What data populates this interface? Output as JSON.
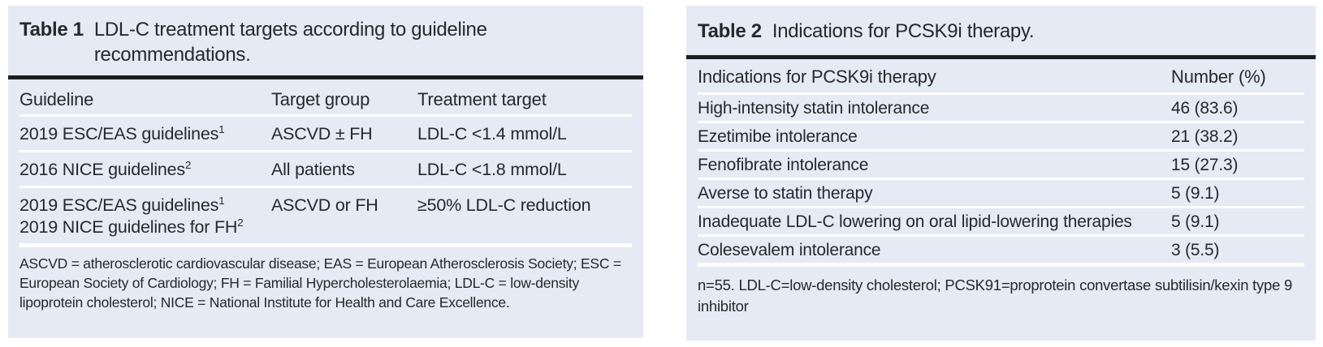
{
  "colors": {
    "page_bg": "#ffffff",
    "panel_bg": "#e5eaf4",
    "text": "#26282e",
    "thick_rule": "#1b1d22",
    "row_divider": "#ffffff"
  },
  "table1": {
    "label": "Table 1",
    "title": "LDL-C treatment targets according to guideline recommendations.",
    "columns": [
      "Guideline",
      "Target group",
      "Treatment target"
    ],
    "rows": [
      {
        "lines": [
          {
            "text": "2019 ESC/EAS guidelines",
            "sup": "1"
          }
        ],
        "target_group": "ASCVD ± FH",
        "treatment_target": "LDL-C <1.4 mmol/L"
      },
      {
        "lines": [
          {
            "text": "2016 NICE guidelines",
            "sup": "2"
          }
        ],
        "target_group": "All patients",
        "treatment_target": "LDL-C <1.8 mmol/L"
      },
      {
        "lines": [
          {
            "text": "2019 ESC/EAS guidelines",
            "sup": "1"
          },
          {
            "text": "2019 NICE guidelines for FH",
            "sup": "2"
          }
        ],
        "target_group": "ASCVD or FH",
        "treatment_target": "≥50% LDL-C reduction"
      }
    ],
    "footnote": "ASCVD = atherosclerotic cardiovascular disease; EAS = European Atherosclerosis Society; ESC = European Society of Cardiology; FH = Familial Hypercholesterolaemia; LDL-C = low-density lipoprotein cholesterol; NICE = National Institute for Health and Care Excellence."
  },
  "table2": {
    "label": "Table 2",
    "title": "Indications for PCSK9i therapy.",
    "columns": [
      "Indications for PCSK9i therapy",
      "Number (%)"
    ],
    "rows": [
      {
        "indication": "High-intensity statin intolerance",
        "number": "46 (83.6)"
      },
      {
        "indication": "Ezetimibe intolerance",
        "number": "21 (38.2)"
      },
      {
        "indication": "Fenofibrate intolerance",
        "number": "15 (27.3)"
      },
      {
        "indication": "Averse to statin therapy",
        "number": "5 (9.1)"
      },
      {
        "indication": "Inadequate LDL-C lowering on oral lipid-lowering therapies",
        "number": "5 (9.1)"
      },
      {
        "indication": "Colesevalem intolerance",
        "number": "3 (5.5)"
      }
    ],
    "footnote": "n=55. LDL-C=low-density cholesterol; PCSK91=proprotein convertase subtilisin/kexin type 9 inhibitor"
  }
}
